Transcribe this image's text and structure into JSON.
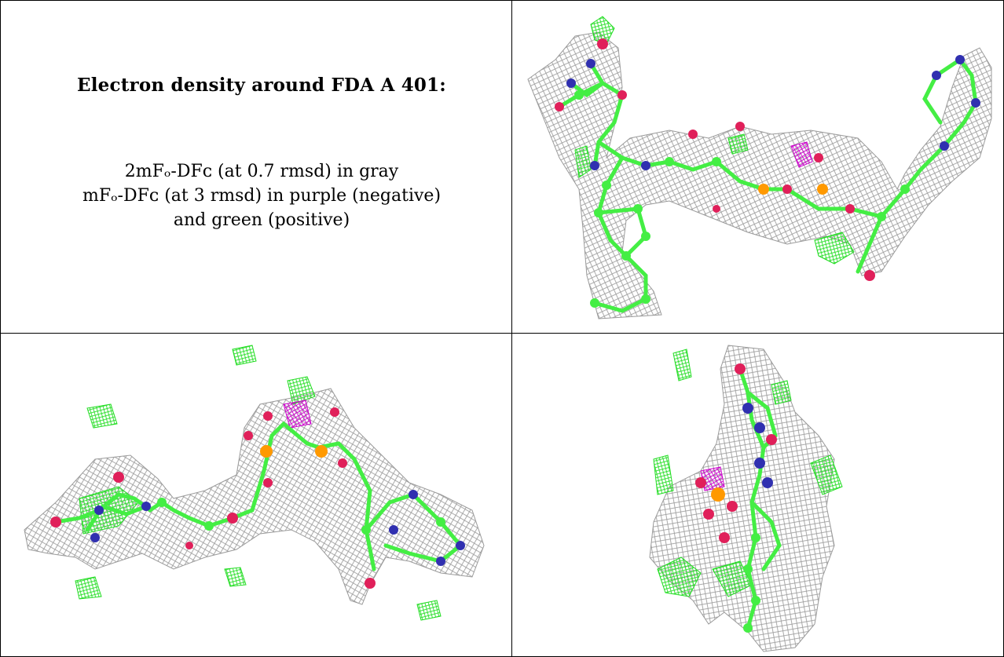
{
  "caption": {
    "title": "Electron density around FDA A 401:",
    "line1": "2mFₒ-DFᴄ (at 0.7 rmsd) in gray",
    "line2": "mFₒ-DFᴄ (at 3 rmsd) in purple (negative)",
    "line3": "and green (positive)"
  },
  "colors": {
    "density_mesh": "#9a9a9a",
    "difference_negative": "#cc00cc",
    "difference_positive": "#22dd22",
    "carbon": "#44ee44",
    "oxygen": "#e0205a",
    "nitrogen": "#3030b0",
    "phosphorus": "#ff9900"
  }
}
